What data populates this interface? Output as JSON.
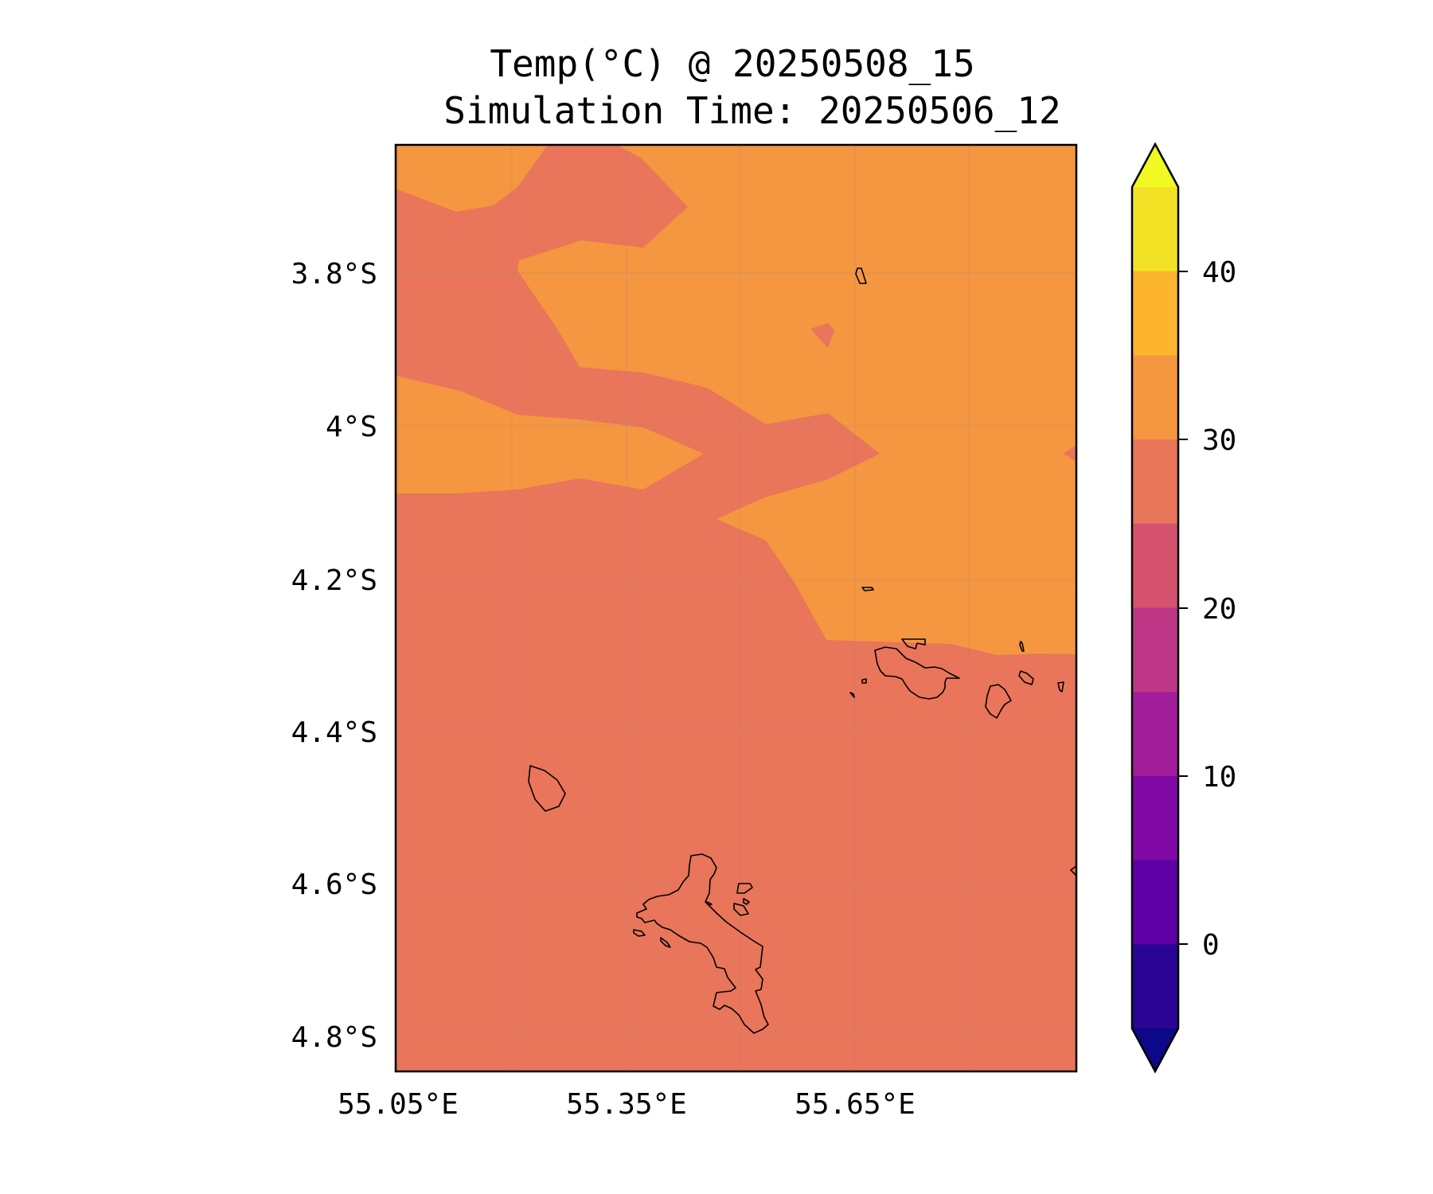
{
  "title": {
    "line1": "Temp(°C) @ 20250508_15",
    "line2": "Simulation Time: 20250506_12"
  },
  "map": {
    "lat_ticks": [
      "3.8°S",
      "4°S",
      "4.2°S",
      "4.4°S",
      "4.6°S",
      "4.8°S"
    ],
    "lon_ticks": [
      "55.05°E",
      "55.35°E",
      "55.65°E"
    ],
    "background_band_color": "#e9755a",
    "warm_band_color": "#f59641",
    "coastline_color": "#000000"
  },
  "colorbar": {
    "ticks": [
      "40",
      "30",
      "20",
      "10",
      "0"
    ],
    "bins": [
      {
        "range": [
          40,
          45
        ],
        "color": "#f2e225"
      },
      {
        "range": [
          35,
          40
        ],
        "color": "#fdb42f"
      },
      {
        "range": [
          30,
          35
        ],
        "color": "#f59641"
      },
      {
        "range": [
          25,
          30
        ],
        "color": "#e9755a"
      },
      {
        "range": [
          20,
          25
        ],
        "color": "#d5536f"
      },
      {
        "range": [
          15,
          20
        ],
        "color": "#bd3786"
      },
      {
        "range": [
          10,
          15
        ],
        "color": "#a21d9a"
      },
      {
        "range": [
          5,
          10
        ],
        "color": "#8109a5"
      },
      {
        "range": [
          0,
          5
        ],
        "color": "#5d01a6"
      },
      {
        "range": [
          -5,
          0
        ],
        "color": "#2a0593"
      }
    ],
    "extend_max_color": "#f0f921",
    "extend_min_color": "#0d0887"
  }
}
